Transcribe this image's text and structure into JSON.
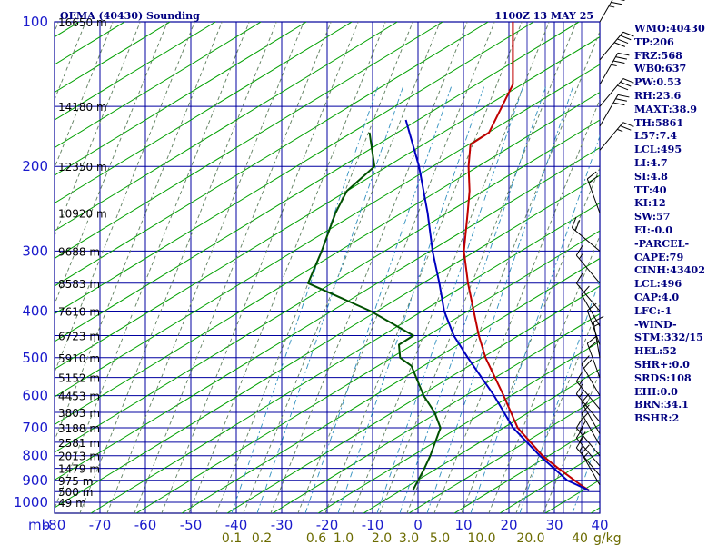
{
  "header": {
    "station": "OEMA (40430) Sounding",
    "time": "1100Z 13 MAY 25"
  },
  "colors": {
    "frame": "#000080",
    "grid": "#0000a0",
    "dry_adiabat": "#00a000",
    "moist_adiabat": "#5f7f5f",
    "mixing_ratio": "#2f8fbf",
    "temperature": "#c00000",
    "dewpoint": "#005000",
    "parcel": "#0000c0",
    "label": "#1a1acc",
    "stats_text": "#000080"
  },
  "chart_data": {
    "type": "line",
    "chart_kind": "skew-t log-p sounding",
    "pressure_unit": "mb",
    "pressure_levels": [
      100,
      200,
      300,
      400,
      500,
      600,
      700,
      800,
      900,
      1000
    ],
    "temperature_ticks": [
      -80,
      -70,
      -60,
      -50,
      -40,
      -30,
      -20,
      -10,
      0,
      10,
      20,
      30,
      40
    ],
    "x_unit_label": "mb",
    "ylim": [
      1050,
      100
    ],
    "xlim": [
      -80,
      40
    ],
    "mixing_ratio_labels": [
      "0.1",
      "0.2",
      "0.6",
      "1.0",
      "2.0",
      "3.0",
      "5.0",
      "10.0",
      "20.0",
      "40"
    ],
    "mixing_ratio_unit": "g/kg",
    "height_labels": [
      {
        "p": 100,
        "text": "16650 m"
      },
      {
        "p": 150,
        "text": "14180 m"
      },
      {
        "p": 200,
        "text": "12350 m"
      },
      {
        "p": 250,
        "text": "10920 m"
      },
      {
        "p": 300,
        "text": "9688 m"
      },
      {
        "p": 350,
        "text": "8583 m"
      },
      {
        "p": 400,
        "text": "7610 m"
      },
      {
        "p": 450,
        "text": "6723 m"
      },
      {
        "p": 500,
        "text": "5910 m"
      },
      {
        "p": 550,
        "text": "5152 m"
      },
      {
        "p": 600,
        "text": "4453 m"
      },
      {
        "p": 650,
        "text": "3803 m"
      },
      {
        "p": 700,
        "text": "3188 m"
      },
      {
        "p": 750,
        "text": "2581 m"
      },
      {
        "p": 800,
        "text": "2013 m"
      },
      {
        "p": 850,
        "text": "1479 m"
      },
      {
        "p": 900,
        "text": "975 m"
      },
      {
        "p": 950,
        "text": "500 m"
      },
      {
        "p": 1000,
        "text": "49 m"
      }
    ],
    "series": [
      {
        "name": "temperature",
        "points": [
          [
            100,
            -62.7
          ],
          [
            135,
            -51.8
          ],
          [
            170,
            -48.7
          ],
          [
            180,
            -50.7
          ],
          [
            200,
            -47.3
          ],
          [
            225,
            -42.8
          ],
          [
            250,
            -39.4
          ],
          [
            300,
            -33.6
          ],
          [
            350,
            -27.1
          ],
          [
            400,
            -21.0
          ],
          [
            450,
            -15.6
          ],
          [
            500,
            -10.3
          ],
          [
            600,
            0.3
          ],
          [
            700,
            9.0
          ],
          [
            800,
            19.3
          ],
          [
            850,
            25.0
          ],
          [
            925,
            33.3
          ],
          [
            945,
            35.6
          ]
        ]
      },
      {
        "name": "dewpoint",
        "points": [
          [
            170,
            -75.0
          ],
          [
            200,
            -68.0
          ],
          [
            225,
            -69.8
          ],
          [
            250,
            -68.5
          ],
          [
            300,
            -64.9
          ],
          [
            350,
            -62.3
          ],
          [
            400,
            -43.7
          ],
          [
            450,
            -30.0
          ],
          [
            470,
            -31.6
          ],
          [
            500,
            -29.1
          ],
          [
            520,
            -25.2
          ],
          [
            600,
            -17.3
          ],
          [
            650,
            -12.0
          ],
          [
            700,
            -8.0
          ],
          [
            800,
            -5.4
          ],
          [
            850,
            -4.5
          ],
          [
            930,
            -3.4
          ],
          [
            945,
            -3.2
          ]
        ]
      },
      {
        "name": "parcel",
        "points": [
          [
            160,
            -69.2
          ],
          [
            200,
            -58.2
          ],
          [
            250,
            -48.2
          ],
          [
            300,
            -40.5
          ],
          [
            350,
            -33.4
          ],
          [
            400,
            -27.5
          ],
          [
            450,
            -21.1
          ],
          [
            500,
            -14.2
          ],
          [
            600,
            -1.8
          ],
          [
            700,
            8.0
          ],
          [
            800,
            18.7
          ],
          [
            900,
            29.0
          ],
          [
            945,
            35.6
          ]
        ]
      }
    ],
    "wind_barbs": [
      {
        "p": 100,
        "dir": 30,
        "kt": 45
      },
      {
        "p": 120,
        "dir": 40,
        "kt": 40
      },
      {
        "p": 135,
        "dir": 30,
        "kt": 35
      },
      {
        "p": 150,
        "dir": 40,
        "kt": 30
      },
      {
        "p": 165,
        "dir": 30,
        "kt": 30
      },
      {
        "p": 185,
        "dir": 40,
        "kt": 25
      },
      {
        "p": 250,
        "dir": 340,
        "kt": 20
      },
      {
        "p": 300,
        "dir": 310,
        "kt": 20
      },
      {
        "p": 350,
        "dir": 320,
        "kt": 15
      },
      {
        "p": 400,
        "dir": 320,
        "kt": 10
      },
      {
        "p": 430,
        "dir": 330,
        "kt": 10
      },
      {
        "p": 470,
        "dir": 340,
        "kt": 10
      },
      {
        "p": 500,
        "dir": 350,
        "kt": 15
      },
      {
        "p": 550,
        "dir": 340,
        "kt": 20
      },
      {
        "p": 600,
        "dir": 330,
        "kt": 20
      },
      {
        "p": 640,
        "dir": 320,
        "kt": 15
      },
      {
        "p": 680,
        "dir": 320,
        "kt": 15
      },
      {
        "p": 720,
        "dir": 330,
        "kt": 15
      },
      {
        "p": 760,
        "dir": 330,
        "kt": 15
      },
      {
        "p": 800,
        "dir": 320,
        "kt": 20
      },
      {
        "p": 840,
        "dir": 320,
        "kt": 20
      },
      {
        "p": 880,
        "dir": 320,
        "kt": 15
      },
      {
        "p": 920,
        "dir": 330,
        "kt": 15
      }
    ]
  },
  "stats": [
    "WMO:40430",
    "TP:206",
    "FRZ:568",
    "WB0:637",
    "PW:0.53",
    "RH:23.6",
    "MAXT:38.9",
    "TH:5861",
    "L57:7.4",
    "LCL:495",
    "LI:4.7",
    "SI:4.8",
    "TT:40",
    "KI:12",
    "SW:57",
    "EI:-0.0",
    "-PARCEL-",
    "CAPE:79",
    "CINH:43402",
    "LCL:496",
    "CAP:4.0",
    "LFC:-1",
    "-WIND-",
    "STM:332/15",
    "HEL:52",
    "SHR+:0.0",
    "SRDS:108",
    "EHI:0.0",
    "BRN:34.1",
    "BSHR:2"
  ]
}
